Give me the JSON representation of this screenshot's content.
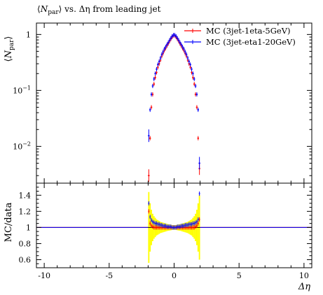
{
  "chart_data": {
    "type": "scatter",
    "title": "⟨N_par⟩ vs. Δη from leading jet",
    "title_parts": {
      "open": "⟨",
      "sym": "N",
      "sub": "par",
      "close": "⟩",
      "rest": " vs. Δη from leading jet"
    },
    "xlabel": "Δη",
    "xlim": [
      -10.6,
      10.6
    ],
    "x_ticks": [
      -10,
      -5,
      0,
      5,
      10
    ],
    "x_tick_labels": [
      "-10",
      "-5",
      "0",
      "5",
      "10"
    ],
    "top": {
      "ylabel_parts": {
        "open": "⟨",
        "sym": "N",
        "sub": "par",
        "close": "⟩"
      },
      "yscale": "log",
      "ylim": [
        0.0022,
        1.6
      ],
      "y_ticks": [
        0.01,
        0.1,
        1
      ],
      "y_tick_labels": [
        {
          "base": "10",
          "exp": "−2"
        },
        {
          "base": "10",
          "exp": "−1"
        },
        {
          "base": "1",
          "exp": ""
        }
      ],
      "legend_placement": "top-right",
      "series": [
        {
          "name": "MC (3jet-1eta-5GeV)",
          "color": "#ff0000",
          "x": [
            -1.95,
            -1.85,
            -1.75,
            -1.65,
            -1.55,
            -1.45,
            -1.35,
            -1.25,
            -1.15,
            -1.05,
            -0.95,
            -0.85,
            -0.75,
            -0.65,
            -0.55,
            -0.45,
            -0.35,
            -0.25,
            -0.15,
            -0.05,
            0.05,
            0.15,
            0.25,
            0.35,
            0.45,
            0.55,
            0.65,
            0.75,
            0.85,
            0.95,
            1.05,
            1.15,
            1.25,
            1.35,
            1.45,
            1.55,
            1.65,
            1.75,
            1.85,
            1.95
          ],
          "y": [
            0.003,
            0.014,
            0.05,
            0.085,
            0.13,
            0.17,
            0.21,
            0.26,
            0.3,
            0.35,
            0.41,
            0.46,
            0.52,
            0.57,
            0.63,
            0.69,
            0.76,
            0.83,
            0.9,
            0.96,
            0.96,
            0.9,
            0.83,
            0.76,
            0.69,
            0.63,
            0.57,
            0.52,
            0.46,
            0.41,
            0.35,
            0.3,
            0.26,
            0.21,
            0.17,
            0.13,
            0.085,
            0.05,
            0.014,
            0.004
          ]
        },
        {
          "name": "MC (3jet-eta1-20GeV)",
          "color": "#0000ff",
          "x": [
            -1.95,
            -1.85,
            -1.75,
            -1.65,
            -1.55,
            -1.45,
            -1.35,
            -1.25,
            -1.15,
            -1.05,
            -0.95,
            -0.85,
            -0.75,
            -0.65,
            -0.55,
            -0.45,
            -0.35,
            -0.25,
            -0.15,
            -0.05,
            0.05,
            0.15,
            0.25,
            0.35,
            0.45,
            0.55,
            0.65,
            0.75,
            0.85,
            0.95,
            1.05,
            1.15,
            1.25,
            1.35,
            1.45,
            1.55,
            1.65,
            1.75,
            1.85,
            1.95
          ],
          "y": [
            0.0155,
            0.045,
            0.085,
            0.12,
            0.16,
            0.2,
            0.24,
            0.29,
            0.33,
            0.38,
            0.44,
            0.49,
            0.55,
            0.6,
            0.66,
            0.72,
            0.79,
            0.86,
            0.93,
            0.98,
            0.98,
            0.93,
            0.86,
            0.79,
            0.72,
            0.66,
            0.6,
            0.55,
            0.49,
            0.44,
            0.38,
            0.33,
            0.29,
            0.24,
            0.2,
            0.16,
            0.12,
            0.085,
            0.045,
            0.005
          ]
        }
      ]
    },
    "ratio": {
      "ylabel": "MC/data",
      "ylim": [
        0.5,
        1.55
      ],
      "y_ticks": [
        0.6,
        0.8,
        1,
        1.2,
        1.4
      ],
      "y_tick_labels": [
        "0.6",
        "0.8",
        "1",
        "1.2",
        "1.4"
      ],
      "reference_line": 1,
      "band_color": "#ffff00",
      "band": {
        "x": [
          -1.95,
          -1.85,
          -1.75,
          -1.65,
          -1.55,
          -1.45,
          -1.35,
          -1.25,
          -1.15,
          -1.05,
          -0.95,
          -0.85,
          -0.75,
          -0.65,
          -0.55,
          -0.45,
          -0.35,
          -0.25,
          -0.15,
          -0.05,
          0.05,
          0.15,
          0.25,
          0.35,
          0.45,
          0.55,
          0.65,
          0.75,
          0.85,
          0.95,
          1.05,
          1.15,
          1.25,
          1.35,
          1.45,
          1.55,
          1.65,
          1.75,
          1.85,
          1.95
        ],
        "lo": [
          0.56,
          0.7,
          0.78,
          0.83,
          0.86,
          0.88,
          0.9,
          0.91,
          0.92,
          0.93,
          0.935,
          0.94,
          0.945,
          0.95,
          0.955,
          0.96,
          0.962,
          0.965,
          0.97,
          0.972,
          0.972,
          0.97,
          0.965,
          0.962,
          0.96,
          0.955,
          0.95,
          0.945,
          0.94,
          0.935,
          0.93,
          0.92,
          0.91,
          0.9,
          0.88,
          0.86,
          0.83,
          0.78,
          0.7,
          0.6
        ],
        "hi": [
          1.44,
          1.3,
          1.22,
          1.17,
          1.14,
          1.12,
          1.1,
          1.09,
          1.08,
          1.07,
          1.065,
          1.06,
          1.055,
          1.05,
          1.045,
          1.04,
          1.038,
          1.035,
          1.03,
          1.028,
          1.028,
          1.03,
          1.035,
          1.038,
          1.04,
          1.045,
          1.05,
          1.055,
          1.06,
          1.065,
          1.07,
          1.08,
          1.09,
          1.1,
          1.12,
          1.14,
          1.17,
          1.22,
          1.3,
          1.4
        ]
      },
      "series": [
        {
          "name": "MC (3jet-1eta-5GeV)",
          "color": "#ff0000",
          "x": [
            -1.95,
            -1.85,
            -1.75,
            -1.65,
            -1.55,
            -1.45,
            -1.35,
            -1.25,
            -1.15,
            -1.05,
            -0.95,
            -0.85,
            -0.75,
            -0.65,
            -0.55,
            -0.45,
            -0.35,
            -0.25,
            -0.15,
            -0.05,
            0.05,
            0.15,
            0.25,
            0.35,
            0.45,
            0.55,
            0.65,
            0.75,
            0.85,
            0.95,
            1.05,
            1.15,
            1.25,
            1.35,
            1.45,
            1.55,
            1.65,
            1.75,
            1.85,
            1.95
          ],
          "y": [
            1.2,
            1.05,
            1.02,
            1.01,
            1.0,
            1.0,
            1.0,
            1.0,
            1.0,
            1.0,
            1.0,
            1.0,
            1.0,
            1.0,
            1.0,
            1.0,
            1.0,
            1.0,
            1.0,
            1.0,
            1.0,
            1.0,
            1.0,
            1.0,
            1.0,
            1.0,
            1.0,
            1.0,
            1.0,
            1.0,
            1.0,
            1.0,
            1.0,
            1.0,
            1.0,
            1.0,
            1.01,
            1.02,
            1.05,
            1.1
          ]
        },
        {
          "name": "MC (3jet-eta1-20GeV)",
          "color": "#0000ff",
          "x": [
            -1.95,
            -1.85,
            -1.75,
            -1.65,
            -1.55,
            -1.45,
            -1.35,
            -1.25,
            -1.15,
            -1.05,
            -0.95,
            -0.85,
            -0.75,
            -0.65,
            -0.55,
            -0.45,
            -0.35,
            -0.25,
            -0.15,
            -0.05,
            0.05,
            0.15,
            0.25,
            0.35,
            0.45,
            0.55,
            0.65,
            0.75,
            0.85,
            0.95,
            1.05,
            1.15,
            1.25,
            1.35,
            1.45,
            1.55,
            1.65,
            1.75,
            1.85,
            1.95
          ],
          "y": [
            1.3,
            1.13,
            1.09,
            1.07,
            1.06,
            1.05,
            1.05,
            1.04,
            1.04,
            1.03,
            1.03,
            1.02,
            1.02,
            1.02,
            1.01,
            1.01,
            1.01,
            1.01,
            1.0,
            1.0,
            1.0,
            1.0,
            1.01,
            1.01,
            1.01,
            1.02,
            1.02,
            1.02,
            1.03,
            1.03,
            1.03,
            1.04,
            1.04,
            1.04,
            1.05,
            1.05,
            1.06,
            1.07,
            1.1,
            1.42
          ]
        }
      ]
    }
  }
}
